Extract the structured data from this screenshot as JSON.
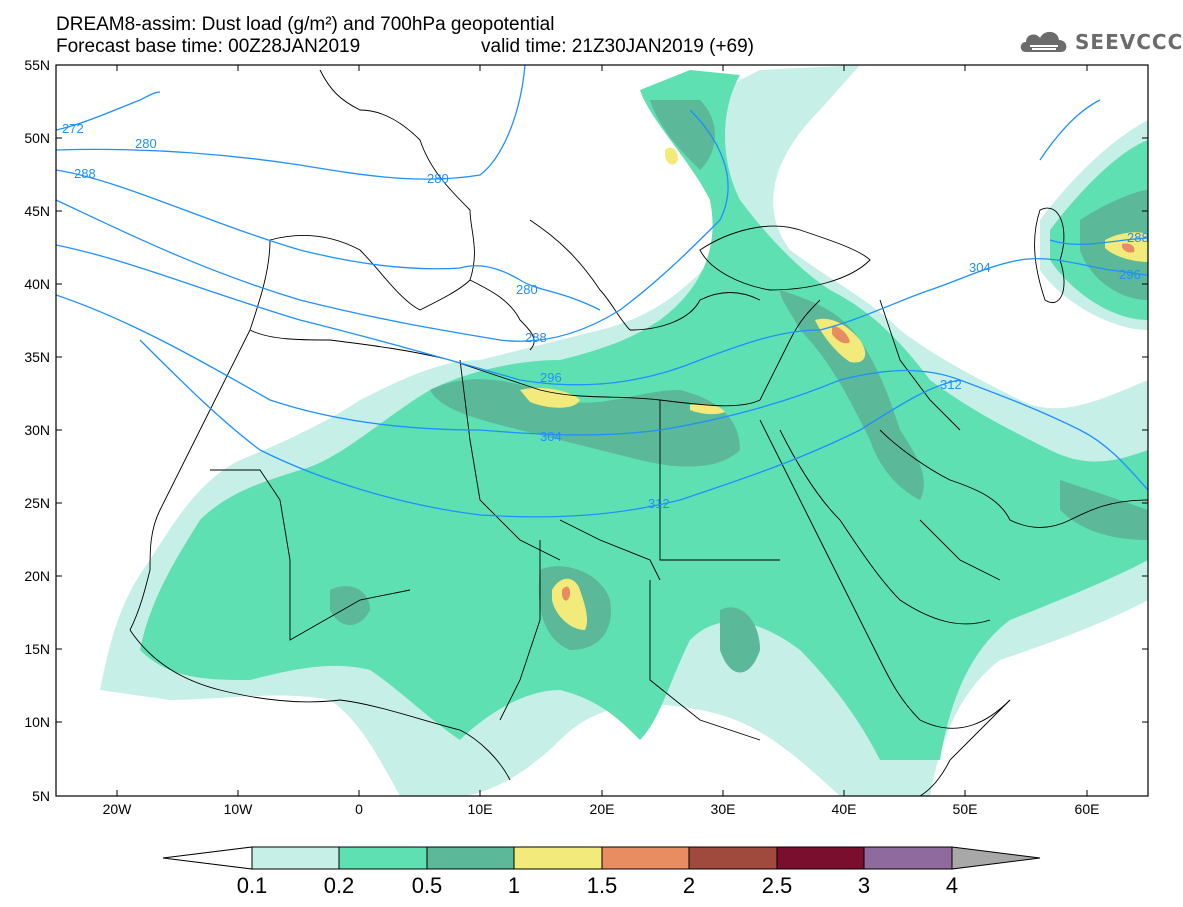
{
  "header": {
    "title_line_1": "DREAM8-assim: Dust load (g/m²) and 700hPa geopotential",
    "base_time": "Forecast base time: 00Z28JAN2019",
    "valid_time": "valid time: 21Z30JAN2019 (+69)"
  },
  "logo": {
    "text": "SEEVCCC",
    "icon": "cloud-icon",
    "color": "#6b6b6b"
  },
  "map": {
    "lon_range": [
      -25,
      65
    ],
    "lat_range": [
      5,
      55
    ],
    "lat_labels": [
      "55N",
      "50N",
      "45N",
      "40N",
      "35N",
      "30N",
      "25N",
      "20N",
      "15N",
      "10N",
      "5N"
    ],
    "lon_labels": [
      "20W",
      "10W",
      "0",
      "10E",
      "20E",
      "30E",
      "40E",
      "50E",
      "60E"
    ],
    "contour_color": "#1e90ff",
    "contour_labels": [
      "272",
      "280",
      "288",
      "280",
      "280",
      "288",
      "296",
      "304",
      "312",
      "304",
      "312",
      "288",
      "296"
    ]
  },
  "colorbar": {
    "labels": [
      "0.1",
      "0.2",
      "0.5",
      "1",
      "1.5",
      "2",
      "2.5",
      "3",
      "4"
    ],
    "colors": [
      "#c6efe8",
      "#5ee0b2",
      "#5bb898",
      "#f2ea7a",
      "#e88d62",
      "#a04a3e",
      "#7a0e2e",
      "#8e6a9e",
      "#a8a8a8"
    ],
    "below_color": "#ffffff"
  }
}
